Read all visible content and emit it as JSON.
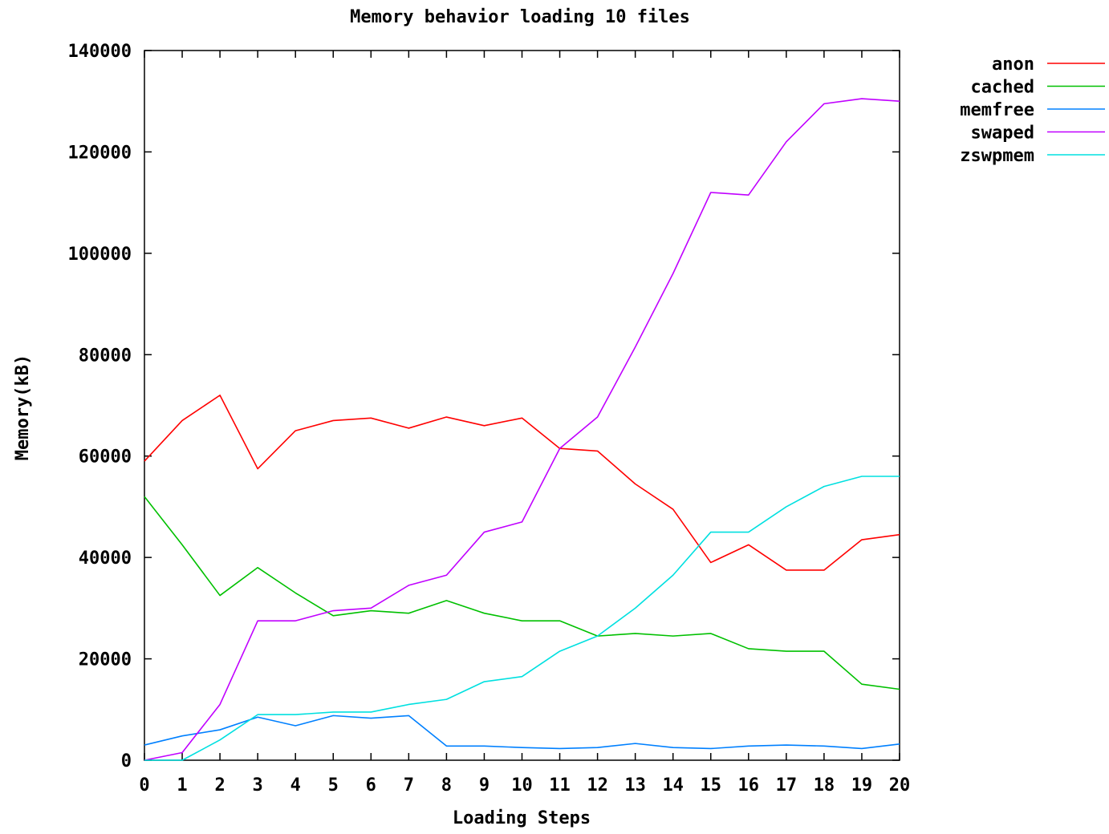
{
  "chart_data": {
    "type": "line",
    "title": "Memory behavior loading 10 files",
    "xlabel": "Loading Steps",
    "ylabel": "Memory(kB)",
    "x": [
      0,
      1,
      2,
      3,
      4,
      5,
      6,
      7,
      8,
      9,
      10,
      11,
      12,
      13,
      14,
      15,
      16,
      17,
      18,
      19,
      20
    ],
    "xlim": [
      0,
      20
    ],
    "ylim": [
      0,
      140000
    ],
    "y_ticks": [
      0,
      20000,
      40000,
      60000,
      80000,
      100000,
      120000,
      140000
    ],
    "x_ticks": [
      0,
      1,
      2,
      3,
      4,
      5,
      6,
      7,
      8,
      9,
      10,
      11,
      12,
      13,
      14,
      15,
      16,
      17,
      18,
      19,
      20
    ],
    "grid": false,
    "legend_position": "top-right outside",
    "series": [
      {
        "name": "anon",
        "color": "#ff0000",
        "values": [
          59000,
          67000,
          72000,
          57500,
          65000,
          67000,
          67500,
          65500,
          67700,
          66000,
          67500,
          61500,
          61000,
          54500,
          49500,
          39000,
          42500,
          37500,
          37500,
          43500,
          44500
        ]
      },
      {
        "name": "cached",
        "color": "#00c000",
        "values": [
          52000,
          42500,
          32500,
          38000,
          33000,
          28500,
          29500,
          29000,
          31500,
          29000,
          27500,
          27500,
          24500,
          25000,
          24500,
          25000,
          22000,
          21500,
          21500,
          15000,
          14000
        ]
      },
      {
        "name": "memfree",
        "color": "#0080ff",
        "values": [
          3000,
          4800,
          6000,
          8500,
          6800,
          8800,
          8300,
          8800,
          2800,
          2800,
          2500,
          2300,
          2500,
          3300,
          2500,
          2300,
          2800,
          3000,
          2800,
          2300,
          3200
        ]
      },
      {
        "name": "swaped",
        "color": "#c000ff",
        "values": [
          0,
          1500,
          11000,
          27500,
          27500,
          29500,
          30000,
          34500,
          36500,
          45000,
          47000,
          61500,
          67700,
          81500,
          96000,
          112000,
          111500,
          122000,
          129500,
          130500,
          130000
        ]
      },
      {
        "name": "zswpmem",
        "color": "#00e0e0",
        "values": [
          0,
          0,
          4000,
          9000,
          9000,
          9500,
          9500,
          11000,
          12000,
          15500,
          16500,
          21500,
          24500,
          30000,
          36500,
          45000,
          45000,
          50000,
          54000,
          56000,
          56000
        ]
      }
    ]
  }
}
